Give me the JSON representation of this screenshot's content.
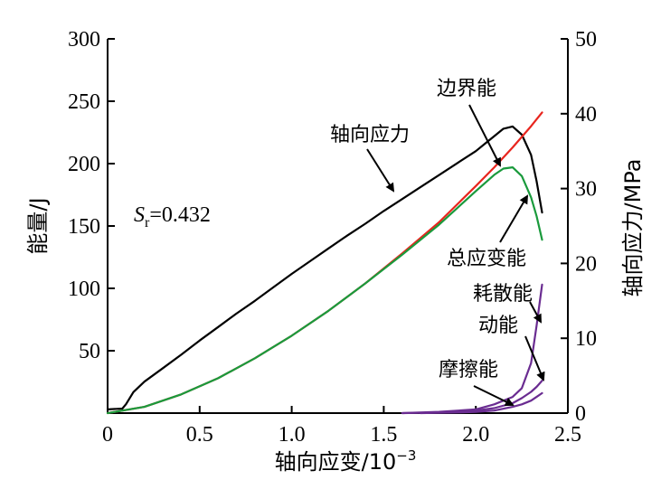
{
  "chart_data": {
    "type": "line",
    "xlabel_prefix": "轴向应变/10",
    "xlabel_exp": "−3",
    "ylabel_left": "能量/J",
    "ylabel_right": "轴向应力/MPa",
    "xlim": [
      0,
      2.5
    ],
    "ylim_left": [
      0,
      300
    ],
    "ylim_right": [
      0,
      50
    ],
    "x_ticks": [
      "0",
      "0.5",
      "1.0",
      "1.5",
      "2.0",
      "2.5"
    ],
    "y_left_ticks": [
      "",
      "50",
      "100",
      "150",
      "200",
      "250",
      "300"
    ],
    "y_right_ticks": [
      "0",
      "10",
      "20",
      "30",
      "40",
      "50"
    ],
    "grid": false,
    "annotation_sr": {
      "symbol": "S",
      "sub": "r",
      "value": "=0.432"
    },
    "series": [
      {
        "name": "轴向应力",
        "axis": "right",
        "color": "#000000",
        "x": [
          0.0,
          0.08,
          0.1,
          0.14,
          0.2,
          0.3,
          0.4,
          0.5,
          0.6,
          0.7,
          0.8,
          0.9,
          1.0,
          1.1,
          1.2,
          1.3,
          1.4,
          1.5,
          1.6,
          1.7,
          1.8,
          1.9,
          2.0,
          2.05,
          2.1,
          2.15,
          2.2,
          2.25,
          2.3,
          2.33,
          2.36
        ],
        "y": [
          0.5,
          0.6,
          1.2,
          2.8,
          4.2,
          6.0,
          7.8,
          9.7,
          11.5,
          13.3,
          15.0,
          16.8,
          18.6,
          20.3,
          22.0,
          23.7,
          25.3,
          27.0,
          28.6,
          30.2,
          31.8,
          33.4,
          35.0,
          36.0,
          37.0,
          38.0,
          38.3,
          37.2,
          34.5,
          31.0,
          26.8
        ]
      },
      {
        "name": "边界能",
        "axis": "left",
        "color": "#e8251e",
        "x": [
          0.0,
          0.2,
          0.4,
          0.6,
          0.8,
          1.0,
          1.2,
          1.4,
          1.6,
          1.8,
          2.0,
          2.1,
          2.2,
          2.3,
          2.36
        ],
        "y": [
          0,
          5,
          15,
          28,
          44,
          62,
          82,
          104,
          128,
          153,
          182,
          197,
          213,
          230,
          241
        ]
      },
      {
        "name": "总应变能",
        "axis": "left",
        "color": "#1a9a3c",
        "x": [
          0.0,
          0.2,
          0.4,
          0.6,
          0.8,
          1.0,
          1.2,
          1.4,
          1.6,
          1.8,
          2.0,
          2.1,
          2.15,
          2.2,
          2.25,
          2.3,
          2.33,
          2.36
        ],
        "y": [
          0,
          5,
          15,
          28,
          44,
          62,
          82,
          104,
          127,
          151,
          178,
          191,
          196,
          197,
          190,
          173,
          158,
          139
        ]
      },
      {
        "name": "耗散能",
        "axis": "left",
        "color": "#6a2c91",
        "x": [
          1.6,
          1.8,
          2.0,
          2.1,
          2.2,
          2.25,
          2.3,
          2.33,
          2.36
        ],
        "y": [
          0,
          1,
          3,
          7,
          13,
          20,
          40,
          70,
          103
        ]
      },
      {
        "name": "动能",
        "axis": "left",
        "color": "#6a2c91",
        "x": [
          1.6,
          1.8,
          2.0,
          2.1,
          2.2,
          2.25,
          2.3,
          2.33,
          2.36
        ],
        "y": [
          0,
          0.5,
          2,
          4,
          8,
          12,
          17,
          21,
          26
        ]
      },
      {
        "name": "摩擦能",
        "axis": "left",
        "color": "#6a2c91",
        "x": [
          1.7,
          1.9,
          2.0,
          2.1,
          2.2,
          2.25,
          2.3,
          2.33,
          2.36
        ],
        "y": [
          0,
          0.5,
          1,
          2,
          5,
          7,
          10,
          13,
          16
        ]
      }
    ],
    "labels": [
      {
        "text": "边界能",
        "target": "边界能"
      },
      {
        "text": "轴向应力",
        "target": "轴向应力"
      },
      {
        "text": "总应变能",
        "target": "总应变能"
      },
      {
        "text": "耗散能",
        "target": "耗散能"
      },
      {
        "text": "动能",
        "target": "动能"
      },
      {
        "text": "摩擦能",
        "target": "摩擦能"
      }
    ]
  }
}
